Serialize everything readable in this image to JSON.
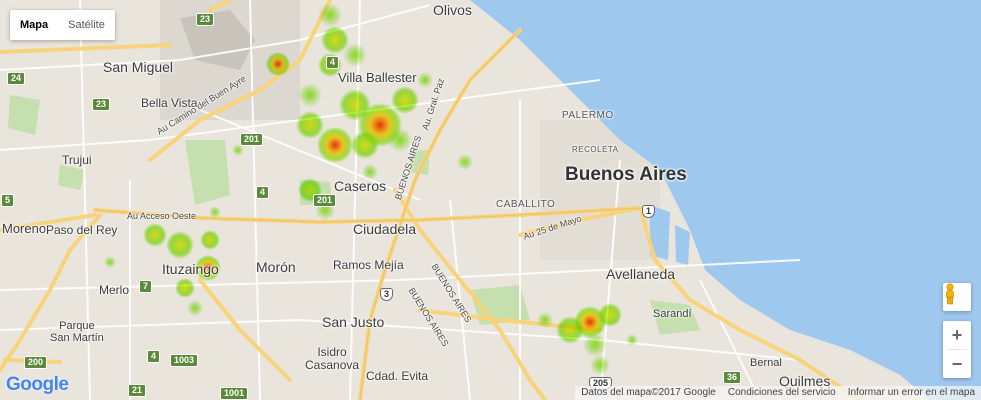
{
  "map_type": {
    "items": [
      {
        "label": "Mapa",
        "active": true
      },
      {
        "label": "Satélite",
        "active": false
      }
    ]
  },
  "places": {
    "olivos": "Olivos",
    "san_miguel": "San Miguel",
    "bella_vista": "Bella Vista",
    "villa_ballester": "Villa Ballester",
    "trujui": "Trujui",
    "caseros": "Caseros",
    "buenos_aires": "Buenos Aires",
    "moreno": "Moreno",
    "paso_del_rey": "Paso del Rey",
    "ciudadela": "Ciudadela",
    "ituzaingo": "Ituzaingo",
    "moron": "Morón",
    "ramos_mejia": "Ramos Mejía",
    "merlo": "Merlo",
    "avellaneda": "Avellaneda",
    "parque_san_martin": "Parque\nSan Martín",
    "san_justo": "San Justo",
    "isidro_casanova": "Isidro\nCasanova",
    "cdad_evita": "Cdad. Evita",
    "sarandi": "Sarandí",
    "bernal": "Bernal",
    "quilmes": "Quilmes"
  },
  "neighborhoods": {
    "palermo": "PALERMO",
    "recoleta": "RECOLETA",
    "caballito": "CABALLITO"
  },
  "roads": {
    "camino_buen_ayre": "Au Camino del Buen Ayre",
    "acceso_oeste": "Au Acceso Oeste",
    "gral_paz": "Au. Gral. Paz",
    "buenos_aires_1": "BUENOS AIRES",
    "buenos_aires_2": "BUENOS AIRES",
    "buenos_aires_3": "BUENOS AIRES",
    "au_25_mayo": "Au 25 de Mayo"
  },
  "shields": {
    "s23a": "23",
    "s23b": "23",
    "s24": "24",
    "s4a": "4",
    "s201a": "201",
    "s4b": "4",
    "s201b": "201",
    "s5": "5",
    "s7": "7",
    "s1": "1",
    "s3": "3",
    "s200": "200",
    "s1003": "1003",
    "s205": "205",
    "s36": "36",
    "s4c": "4",
    "s21": "21",
    "s1001": "1001"
  },
  "controls": {
    "zoom_in": "+",
    "zoom_out": "−"
  },
  "branding": {
    "logo": "Google"
  },
  "footer": {
    "data": "Datos del mapa©2017 Google",
    "terms": "Condiciones del servicio",
    "report": "Informar un error en el mapa"
  },
  "colors": {
    "water": "#9fc8ef",
    "land": "#e9e5dc",
    "highway": "#f8d37a",
    "park": "#c5dfae",
    "heat_low": "#7fff00",
    "heat_mid": "#ffff00",
    "heat_high": "#ff0000"
  },
  "icons": {
    "pegman": "pegman-icon"
  }
}
